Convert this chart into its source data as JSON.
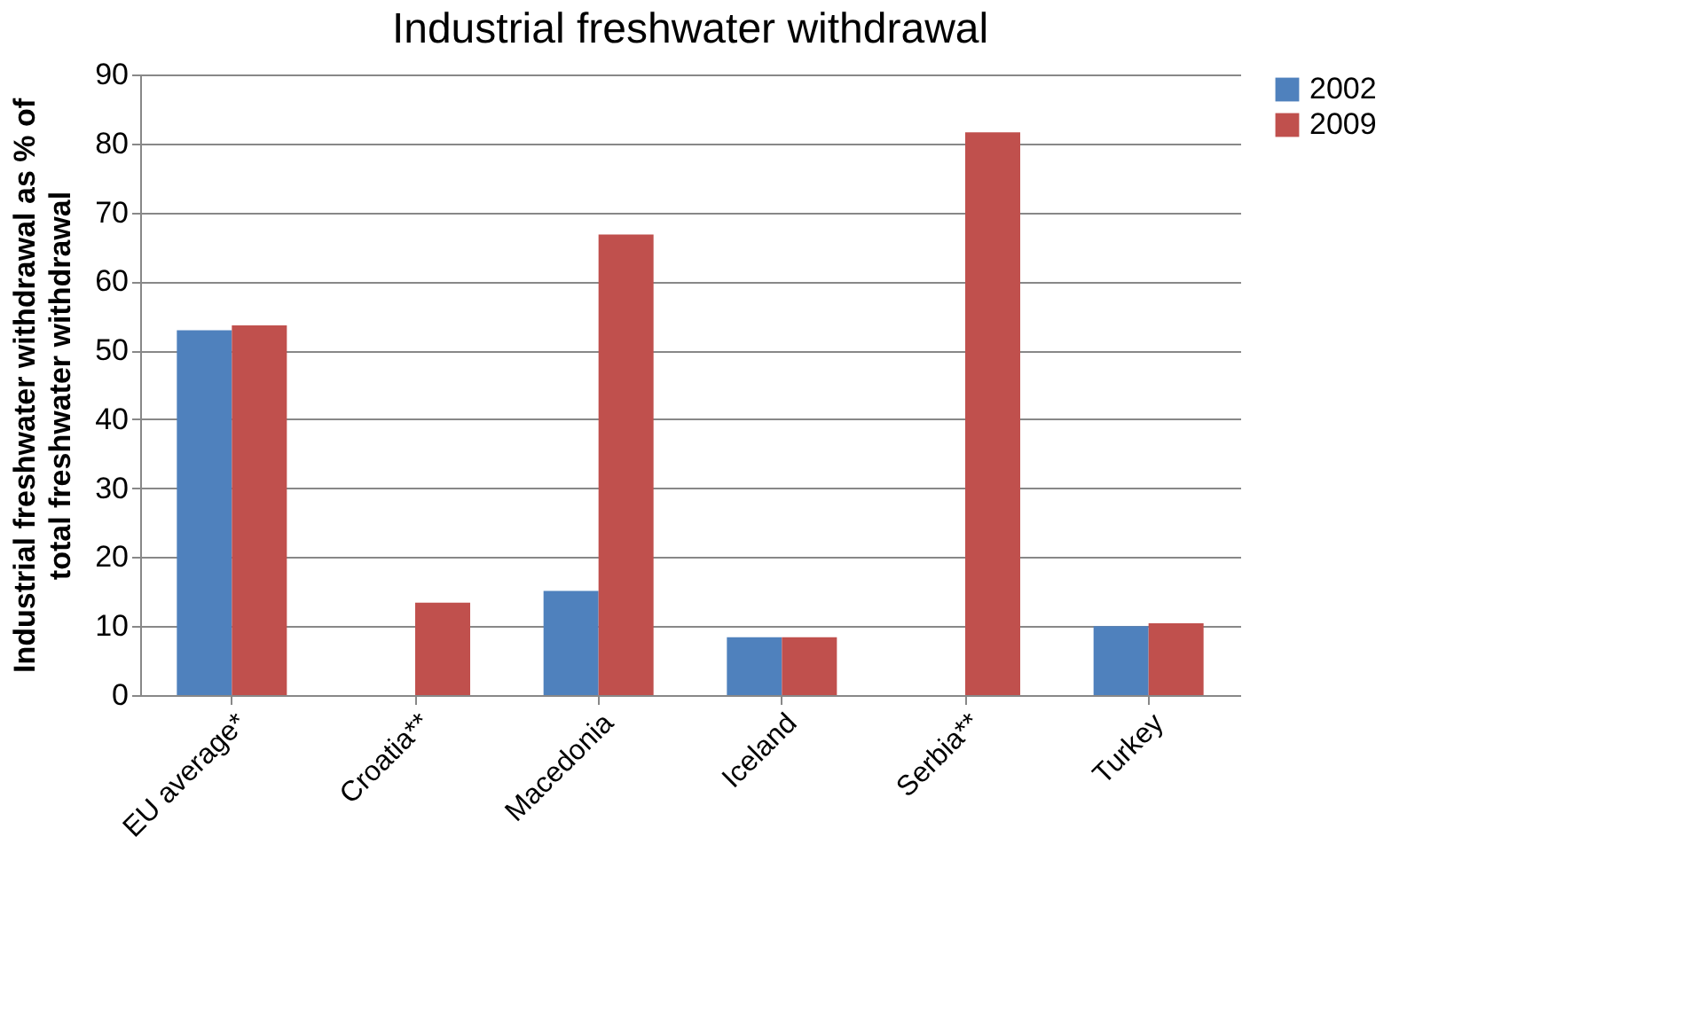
{
  "chart_data": {
    "type": "bar",
    "title": "Industrial freshwater withdrawal",
    "ylabel": "Industrial freshwater withdrawal as % of total freshwater withdrawal",
    "categories": [
      "EU average*",
      "Croatia**",
      "Macedonia",
      "Iceland",
      "Serbia**",
      "Turkey"
    ],
    "series": [
      {
        "name": "2002",
        "color": "#4f81bd",
        "values": [
          52.9,
          null,
          15.1,
          8.4,
          null,
          10.0
        ]
      },
      {
        "name": "2009",
        "color": "#c0504d",
        "values": [
          53.6,
          13.4,
          66.8,
          8.4,
          81.6,
          10.4
        ]
      }
    ],
    "ylim": [
      0,
      90
    ],
    "yticks": [
      0,
      10,
      20,
      30,
      40,
      50,
      60,
      70,
      80,
      90
    ],
    "grid": "y",
    "legend": "right"
  }
}
